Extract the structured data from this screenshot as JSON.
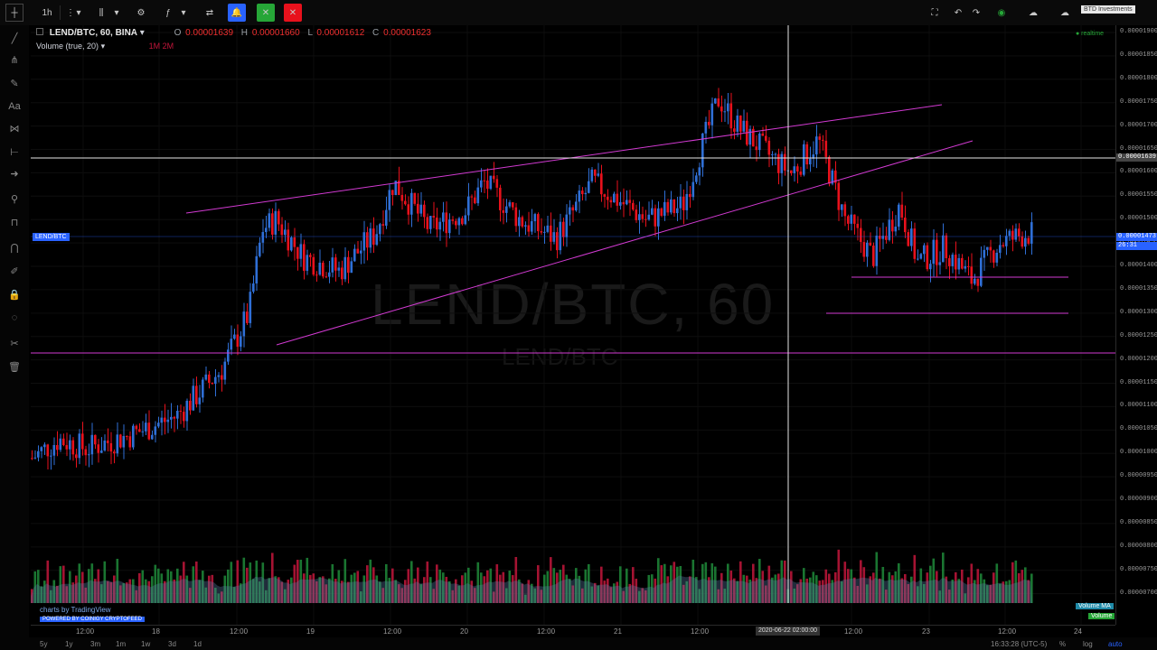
{
  "toolbar": {
    "interval": "1h",
    "brand": "BTD Investments"
  },
  "legend": {
    "symbol": "LEND/BTC, 60, BINA",
    "open_label": "O",
    "open": "0.00001639",
    "high_label": "H",
    "high": "0.00001660",
    "low_label": "L",
    "low": "0.00001612",
    "close_label": "C",
    "close": "0.00001623",
    "volume": "Volume (true, 20)",
    "vol_values": "1M  2M",
    "realtime": "● realtime"
  },
  "watermark": {
    "main": "LEND/BTC, 60",
    "sub": "LEND/BTC"
  },
  "symbol_tag": "LEND/BTC",
  "price_axis": {
    "labels": [
      "0.00001900",
      "0.00001850",
      "0.00001800",
      "0.00001750",
      "0.00001700",
      "0.00001650",
      "0.00001600",
      "0.00001550",
      "0.00001500",
      "0.00001450",
      "0.00001400",
      "0.00001350",
      "0.00001300",
      "0.00001250",
      "0.00001200",
      "0.00001150",
      "0.00001100",
      "0.00001050",
      "0.00001000",
      "0.00000950",
      "0.00000900",
      "0.00000850",
      "0.00000800",
      "0.00000750",
      "0.00000700"
    ],
    "cross_price": "0.00001639",
    "last_price": "0.00001473",
    "countdown": "26:31"
  },
  "time_axis": {
    "labels": [
      "12:00",
      "18",
      "12:00",
      "19",
      "12:00",
      "20",
      "12:00",
      "21",
      "12:00",
      "12:00",
      "23",
      "12:00",
      "24"
    ],
    "cross_time": "2020-06-22 02:00:00"
  },
  "bottom": {
    "ranges": [
      "5y",
      "1y",
      "3m",
      "1m",
      "1w",
      "3d",
      "1d"
    ],
    "clock": "16:33:28 (UTC-5)",
    "pct": "%",
    "log": "log",
    "auto": "auto"
  },
  "credit": {
    "line1": "charts by TradingView",
    "line2": "POWERED BY COINIGY CRYPTOFEED"
  },
  "volume_badges": {
    "ma": "Volume MA",
    "vol": "Volume"
  },
  "colors": {
    "up": "#2f6fd6",
    "down": "#e8111c",
    "trend": "#d23ad2",
    "vol_up": "#1e8a3a",
    "vol_down": "#c2163b"
  },
  "chart_data": {
    "type": "candlestick",
    "symbol": "LEND/BTC",
    "interval": "60",
    "ylim": [
      6.8e-06,
      1.9e-05
    ],
    "candles_ohlc_approx": [
      {
        "t": "06-17 12:00",
        "o": 9.9e-06,
        "c": 1.03e-05
      },
      {
        "t": "06-18",
        "o": 1.03e-05,
        "c": 1.08e-05
      },
      {
        "t": "06-18 12:00",
        "o": 1.1e-05,
        "c": 1.23e-05
      },
      {
        "t": "06-19",
        "o": 1.38e-05,
        "c": 1.44e-05
      },
      {
        "t": "06-19 12:00",
        "o": 1.5e-05,
        "c": 1.58e-05
      },
      {
        "t": "06-20",
        "o": 1.45e-05,
        "c": 1.5e-05
      },
      {
        "t": "06-20 12:00",
        "o": 1.5e-05,
        "c": 1.53e-05
      },
      {
        "t": "06-21",
        "o": 1.54e-05,
        "c": 1.6e-05
      },
      {
        "t": "06-21 12:00",
        "o": 1.65e-05,
        "c": 1.82e-05
      },
      {
        "t": "06-22 02:00",
        "o": 1.63e-05,
        "c": 1.62e-05
      },
      {
        "t": "06-22 12:00",
        "o": 1.5e-05,
        "c": 1.38e-05
      },
      {
        "t": "06-23",
        "o": 1.4e-05,
        "c": 1.45e-05
      },
      {
        "t": "06-23 12:00",
        "o": 1.42e-05,
        "c": 1.47e-05
      }
    ]
  }
}
